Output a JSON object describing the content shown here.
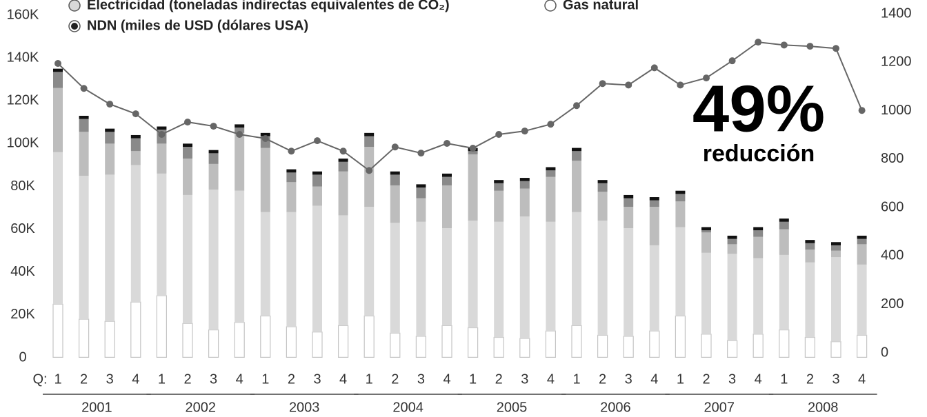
{
  "chart_data": {
    "type": "stacked_bar_line",
    "annotation": {
      "text": "49%",
      "subtext": "reducción"
    },
    "quarter_prefix": "Q:",
    "categories": [
      "1",
      "2",
      "3",
      "4",
      "1",
      "2",
      "3",
      "4",
      "1",
      "2",
      "3",
      "4",
      "1",
      "2",
      "3",
      "4",
      "1",
      "2",
      "3",
      "4",
      "1",
      "2",
      "3",
      "4",
      "1",
      "2",
      "3",
      "4",
      "1",
      "2",
      "3",
      "4"
    ],
    "years": [
      "2001",
      "2002",
      "2003",
      "2004",
      "2005",
      "2006",
      "2007",
      "2008"
    ],
    "ylim": [
      0,
      160000
    ],
    "yticks": [
      {
        "value": 0,
        "label": "0"
      },
      {
        "value": 20000,
        "label": "20K"
      },
      {
        "value": 40000,
        "label": "40K"
      },
      {
        "value": 60000,
        "label": "60K"
      },
      {
        "value": 80000,
        "label": "80K"
      },
      {
        "value": 100000,
        "label": "100K"
      },
      {
        "value": 120000,
        "label": "120K"
      },
      {
        "value": 140000,
        "label": "140K"
      },
      {
        "value": 160000,
        "label": "160K"
      }
    ],
    "y2lim": [
      0,
      1400
    ],
    "y2ticks": [
      0,
      200,
      400,
      600,
      800,
      1000,
      1200,
      1400
    ],
    "series": [
      {
        "name": "Gas natural",
        "color": "#ffffff",
        "values": [
          25000,
          18000,
          17000,
          26000,
          29000,
          16000,
          13000,
          16500,
          19500,
          14500,
          12000,
          15000,
          19500,
          11500,
          10000,
          15000,
          14000,
          9500,
          9000,
          12500,
          15000,
          10500,
          10000,
          12500,
          19500,
          11000,
          8000,
          11000,
          13000,
          9500,
          7500,
          10500
        ]
      },
      {
        "name": "Electricidad (toneladas indirectas equivalentes de CO₂)",
        "color": "#d9d9d9",
        "values": [
          71000,
          67000,
          68500,
          64000,
          57000,
          60000,
          65500,
          61500,
          48500,
          53500,
          59000,
          51500,
          51000,
          51500,
          53500,
          45500,
          50000,
          54000,
          57000,
          51000,
          53000,
          53500,
          50500,
          40000,
          41500,
          38000,
          40500,
          35500,
          35000,
          35000,
          39500,
          33000
        ]
      },
      {
        "color": "#bdbdbd",
        "values": [
          30000,
          20500,
          14500,
          6500,
          14000,
          17000,
          12000,
          27000,
          30000,
          14000,
          9000,
          20500,
          28000,
          17500,
          11000,
          20000,
          31000,
          14500,
          13000,
          21000,
          24000,
          13500,
          10000,
          18000,
          12000,
          9500,
          4500,
          10000,
          12000,
          6000,
          3000,
          9500
        ]
      },
      {
        "color": "#8a8a8a",
        "values": [
          7500,
          6000,
          5500,
          6000,
          6500,
          5500,
          5000,
          2500,
          5500,
          4500,
          5500,
          4500,
          5000,
          5000,
          5000,
          4000,
          1500,
          3500,
          3500,
          3000,
          4500,
          4000,
          4000,
          3000,
          3500,
          1000,
          2500,
          3000,
          3500,
          3000,
          2500,
          2500
        ]
      },
      {
        "color": "#111111",
        "values": [
          1500,
          1500,
          1500,
          1500,
          1500,
          1500,
          1500,
          1500,
          1500,
          1500,
          1500,
          1500,
          1500,
          1500,
          1500,
          1500,
          1500,
          1500,
          1500,
          1500,
          1500,
          1500,
          1500,
          1500,
          1500,
          1500,
          1500,
          1500,
          1500,
          1500,
          1500,
          1500
        ]
      },
      {
        "name": "NDN (miles de USD (dólares USA)",
        "color": "#666666",
        "axis": "y2",
        "values": [
          1195,
          1092,
          1027,
          987,
          902,
          953,
          936,
          902,
          885,
          833,
          876,
          833,
          753,
          850,
          825,
          865,
          845,
          902,
          916,
          944,
          1021,
          1112,
          1106,
          1177,
          1106,
          1135,
          1206,
          1283,
          1271,
          1266,
          1257,
          1001
        ]
      }
    ]
  }
}
